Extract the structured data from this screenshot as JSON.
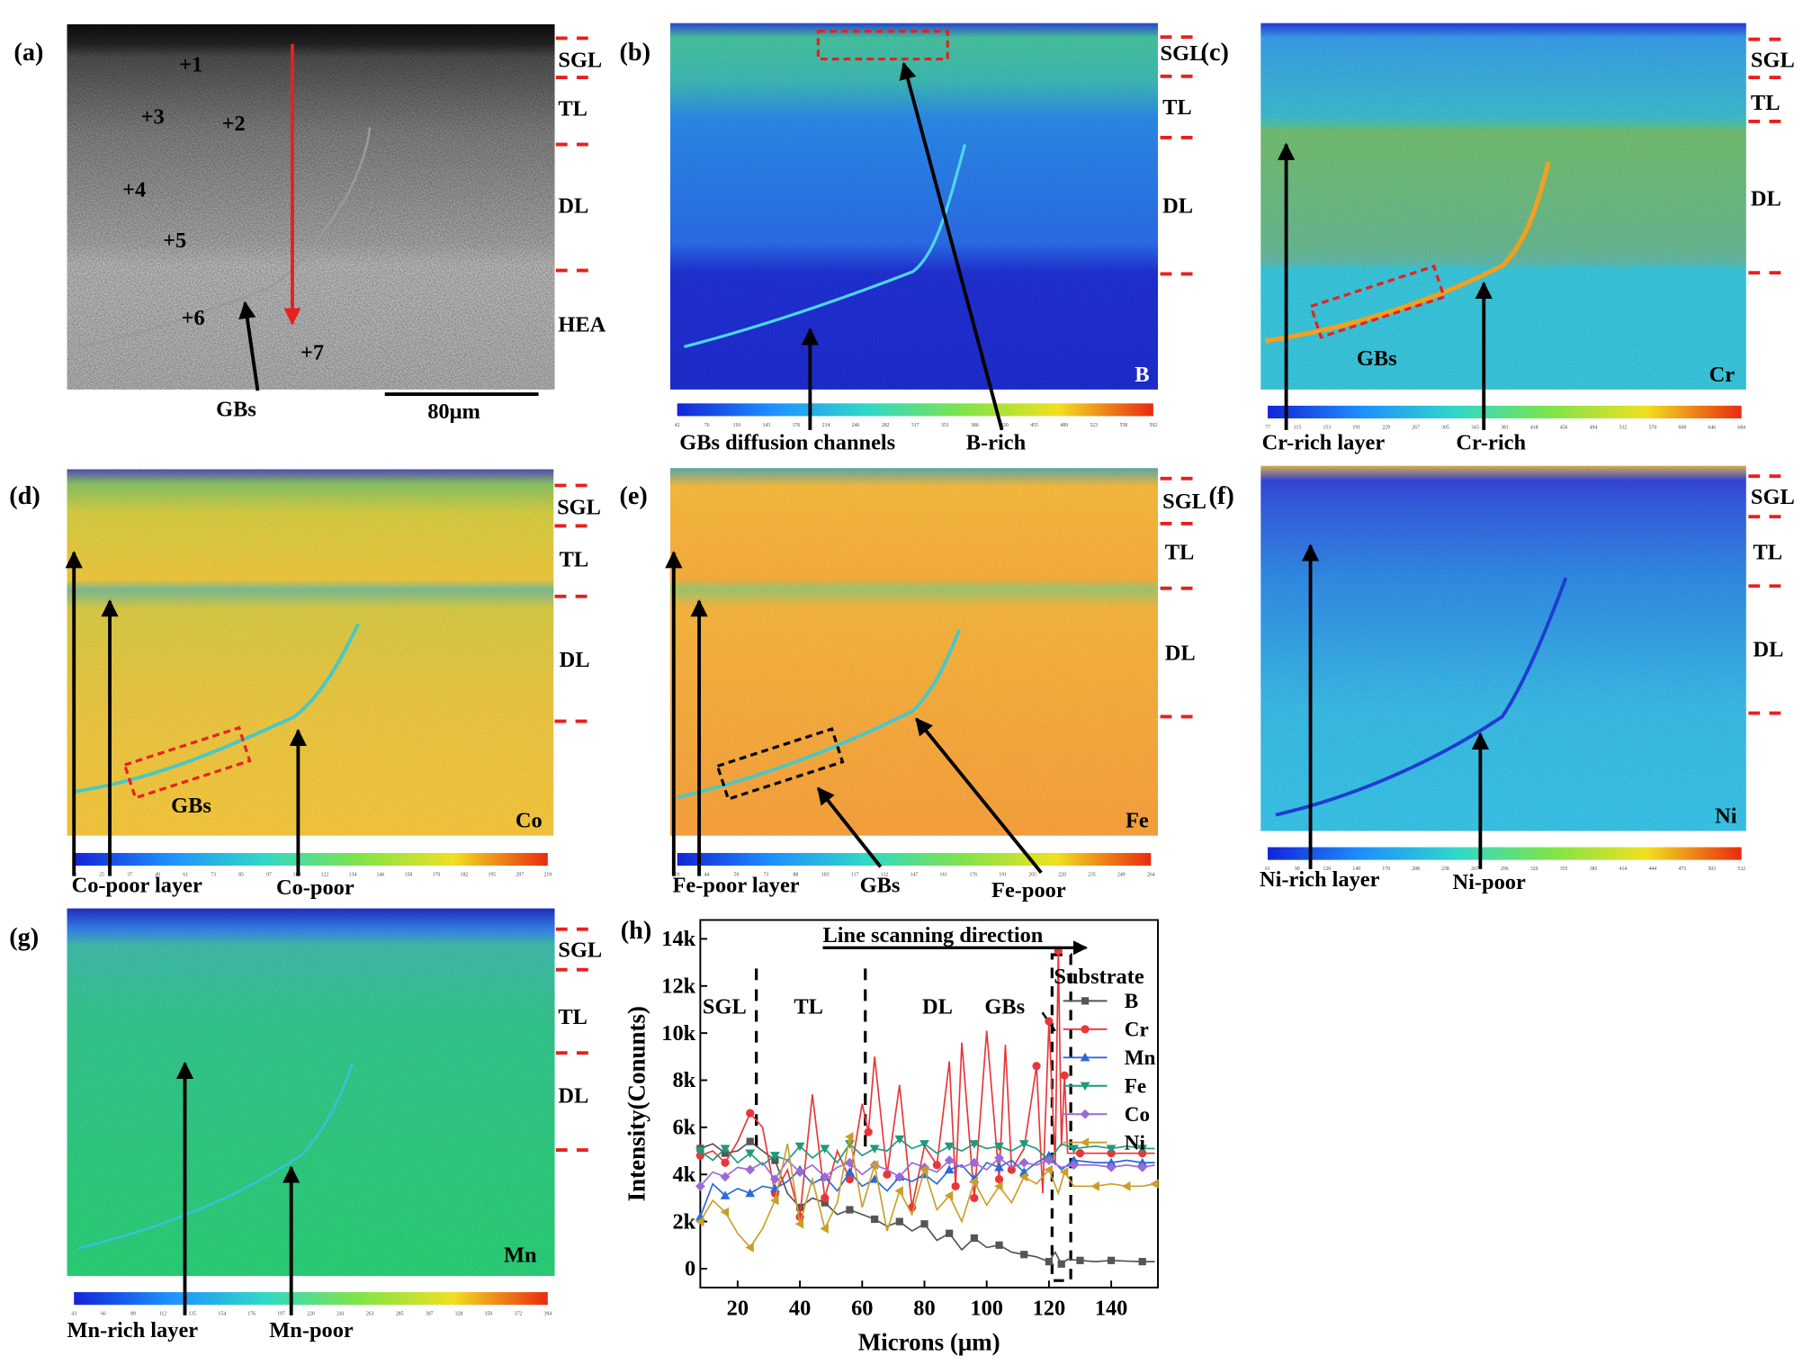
{
  "panels": {
    "a": {
      "label": "(a)",
      "layers": [
        "SGL",
        "TL",
        "DL",
        "HEA"
      ],
      "points": [
        "+1",
        "+2",
        "+3",
        "+4",
        "+5",
        "+6",
        "+7"
      ],
      "gbs": "GBs",
      "scale": "80μm"
    },
    "b": {
      "label": "(b)",
      "element": "B",
      "layers": [
        "SGL",
        "TL",
        "DL"
      ],
      "ann1": "GBs diffusion channels",
      "ann2": "B-rich",
      "scale_ticks": [
        "42",
        "76",
        "110",
        "143",
        "176",
        "214",
        "246",
        "282",
        "317",
        "351",
        "386",
        "420",
        "455",
        "489",
        "523",
        "558",
        "592"
      ]
    },
    "c": {
      "label": "(c)",
      "element": "Cr",
      "layers": [
        "SGL",
        "TL",
        "DL"
      ],
      "gbs": "GBs",
      "ann1": "Cr-rich layer",
      "ann2": "Cr-rich",
      "scale_ticks": [
        "77",
        "115",
        "153",
        "191",
        "229",
        "267",
        "305",
        "343",
        "381",
        "418",
        "456",
        "494",
        "532",
        "570",
        "608",
        "646",
        "684"
      ]
    },
    "d": {
      "label": "(d)",
      "element": "Co",
      "layers": [
        "SGL",
        "TL",
        "DL"
      ],
      "gbs": "GBs",
      "ann1": "Co-poor layer",
      "ann2": "Co-poor",
      "scale_ticks": [
        "13",
        "25",
        "37",
        "49",
        "61",
        "73",
        "85",
        "97",
        "109",
        "122",
        "134",
        "146",
        "158",
        "170",
        "182",
        "195",
        "207",
        "219"
      ]
    },
    "e": {
      "label": "(e)",
      "element": "Fe",
      "layers": [
        "SGL",
        "TL",
        "DL"
      ],
      "gbs": "GBs",
      "ann1": "Fe-poor layer",
      "ann2": "Fe-poor",
      "scale_ticks": [
        "20",
        "44",
        "59",
        "73",
        "88",
        "103",
        "117",
        "132",
        "147",
        "161",
        "176",
        "191",
        "205",
        "220",
        "235",
        "249",
        "264"
      ]
    },
    "f": {
      "label": "(f)",
      "element": "Ni",
      "layers": [
        "SGL",
        "TL",
        "DL"
      ],
      "ann1": "Ni-rich layer",
      "ann2": "Ni-poor",
      "scale_ticks": [
        "61",
        "90",
        "120",
        "149",
        "179",
        "208",
        "238",
        "267",
        "296",
        "326",
        "355",
        "385",
        "414",
        "444",
        "473",
        "503",
        "532"
      ]
    },
    "g": {
      "label": "(g)",
      "element": "Mn",
      "layers": [
        "SGL",
        "TL",
        "DL"
      ],
      "ann1": "Mn-rich layer",
      "ann2": "Mn-poor",
      "scale_ticks": [
        "43",
        "66",
        "89",
        "112",
        "135",
        "154",
        "176",
        "197",
        "220",
        "241",
        "263",
        "285",
        "307",
        "328",
        "350",
        "372",
        "394"
      ]
    },
    "h": {
      "label": "(h)"
    }
  },
  "colors": {
    "arrow_red": "#e8201e",
    "dash_red": "#e8201e",
    "B": "#555555",
    "Cr": "#e8373a",
    "Mn": "#2a6ad6",
    "Fe": "#1f9a7a",
    "Co": "#9b6ad8",
    "Ni": "#c8a028"
  },
  "chart_data": {
    "type": "line",
    "title": "",
    "xlabel": "Microns (μm)",
    "ylabel": "Intensity(Conunts)",
    "xlim": [
      8,
      155
    ],
    "ylim": [
      -800,
      14800
    ],
    "xticks": [
      20,
      40,
      60,
      80,
      100,
      120,
      140
    ],
    "yticks": [
      0,
      2000,
      4000,
      6000,
      8000,
      10000,
      12000,
      14000
    ],
    "ytick_labels": [
      "0",
      "2k",
      "4k",
      "6k",
      "8k",
      "10k",
      "12k",
      "14k"
    ],
    "dividers_x": [
      26,
      61,
      121
    ],
    "gbs_box": [
      121,
      127
    ],
    "annotations": {
      "direction": "Line scanning direction",
      "regions": [
        "SGL",
        "TL",
        "DL",
        "GBs",
        "Substrate"
      ]
    },
    "series": [
      {
        "name": "B",
        "marker": "square",
        "x": [
          8,
          12,
          16,
          20,
          24,
          28,
          32,
          36,
          40,
          44,
          48,
          52,
          56,
          60,
          64,
          68,
          72,
          76,
          80,
          84,
          88,
          92,
          96,
          100,
          104,
          108,
          112,
          116,
          120,
          122,
          124,
          126,
          130,
          135,
          140,
          145,
          150,
          154
        ],
        "values": [
          5100,
          5300,
          4900,
          5000,
          5400,
          5000,
          4600,
          3200,
          2600,
          3000,
          2800,
          2300,
          2500,
          2300,
          2100,
          1800,
          2000,
          1600,
          1900,
          1200,
          1500,
          800,
          1300,
          900,
          1000,
          700,
          600,
          500,
          300,
          700,
          200,
          400,
          350,
          300,
          350,
          320,
          300,
          300
        ]
      },
      {
        "name": "Cr",
        "marker": "circle",
        "x": [
          8,
          12,
          16,
          20,
          24,
          28,
          32,
          36,
          40,
          44,
          48,
          52,
          56,
          60,
          62,
          64,
          68,
          72,
          76,
          80,
          84,
          88,
          90,
          92,
          96,
          100,
          104,
          106,
          108,
          112,
          116,
          118,
          120,
          122,
          123,
          124,
          125,
          126,
          130,
          135,
          140,
          145,
          150,
          154
        ],
        "values": [
          4800,
          5000,
          4500,
          5400,
          6600,
          6000,
          3200,
          4200,
          2200,
          7400,
          3000,
          5000,
          3800,
          7000,
          5800,
          9000,
          4000,
          7800,
          2600,
          5200,
          4400,
          8800,
          3500,
          9600,
          3000,
          10100,
          3800,
          9500,
          4200,
          5100,
          8600,
          3200,
          10500,
          4400,
          13500,
          5200,
          8200,
          4900,
          4900,
          4900,
          4900,
          4900,
          4900,
          4900
        ]
      },
      {
        "name": "Mn",
        "marker": "triangle",
        "x": [
          8,
          12,
          16,
          20,
          24,
          28,
          32,
          36,
          40,
          44,
          48,
          52,
          56,
          60,
          64,
          68,
          72,
          76,
          80,
          84,
          88,
          92,
          96,
          100,
          104,
          108,
          112,
          116,
          120,
          124,
          128,
          135,
          140,
          145,
          150,
          154
        ],
        "values": [
          2200,
          3600,
          3100,
          3400,
          3200,
          3500,
          3400,
          3700,
          4200,
          3600,
          3900,
          3300,
          4100,
          3500,
          3800,
          3300,
          3900,
          3700,
          4000,
          3600,
          4200,
          4400,
          3800,
          4500,
          4300,
          4600,
          4100,
          4500,
          4800,
          4200,
          4600,
          4500,
          4500,
          4600,
          4500,
          4500
        ]
      },
      {
        "name": "Fe",
        "marker": "tri-down",
        "x": [
          8,
          12,
          16,
          20,
          24,
          28,
          32,
          36,
          40,
          44,
          48,
          52,
          56,
          60,
          64,
          68,
          72,
          76,
          80,
          84,
          88,
          92,
          96,
          100,
          104,
          108,
          112,
          116,
          120,
          124,
          128,
          135,
          140,
          145,
          150,
          154
        ],
        "values": [
          5000,
          4600,
          5100,
          4500,
          4900,
          4400,
          4800,
          4600,
          5200,
          4700,
          5100,
          4500,
          5300,
          4800,
          5100,
          5000,
          5500,
          5100,
          5300,
          4900,
          5200,
          5000,
          5300,
          5100,
          5200,
          5000,
          5300,
          5100,
          4600,
          5300,
          5100,
          5200,
          5100,
          5200,
          5100,
          5100
        ]
      },
      {
        "name": "Co",
        "marker": "diamond",
        "x": [
          8,
          12,
          16,
          20,
          24,
          28,
          32,
          36,
          40,
          44,
          48,
          52,
          56,
          60,
          64,
          68,
          72,
          76,
          80,
          84,
          88,
          92,
          96,
          100,
          104,
          108,
          112,
          116,
          120,
          124,
          128,
          135,
          140,
          145,
          150,
          154
        ],
        "values": [
          3500,
          4100,
          3900,
          4300,
          4200,
          4500,
          3800,
          4600,
          4100,
          4400,
          3900,
          4300,
          4500,
          4000,
          4400,
          4200,
          3900,
          4500,
          4300,
          4100,
          4600,
          4300,
          4500,
          4200,
          4700,
          4300,
          4500,
          4400,
          4600,
          4300,
          4400,
          4400,
          4300,
          4400,
          4300,
          4400
        ]
      },
      {
        "name": "Ni",
        "marker": "tri-left",
        "x": [
          8,
          12,
          16,
          20,
          24,
          28,
          32,
          36,
          40,
          44,
          48,
          52,
          56,
          60,
          64,
          68,
          72,
          76,
          80,
          84,
          88,
          92,
          96,
          100,
          104,
          108,
          112,
          116,
          120,
          123,
          125,
          128,
          135,
          140,
          145,
          150,
          154
        ],
        "values": [
          2000,
          2900,
          2400,
          1500,
          900,
          1700,
          2900,
          5300,
          1900,
          3800,
          1700,
          2800,
          5600,
          2600,
          4400,
          1600,
          3300,
          2300,
          4200,
          2500,
          3100,
          2000,
          3700,
          2700,
          3500,
          2800,
          3900,
          3600,
          4200,
          3200,
          4100,
          3500,
          3500,
          3600,
          3500,
          3500,
          3600
        ]
      }
    ]
  }
}
